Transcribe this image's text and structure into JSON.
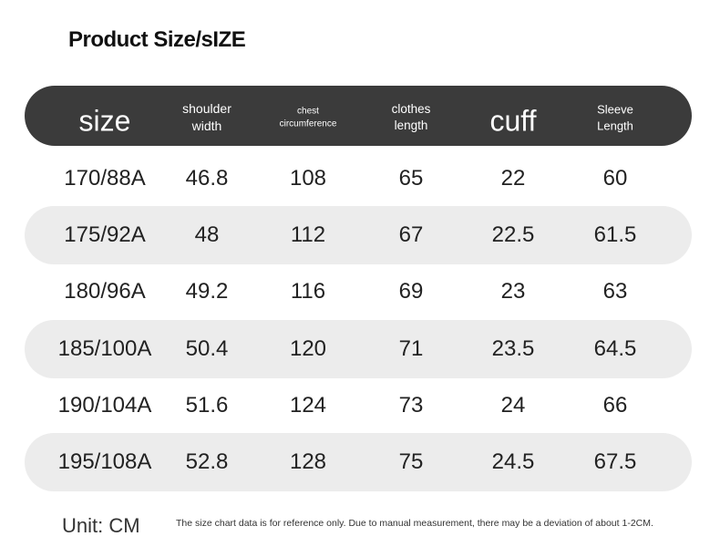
{
  "title": "Product Size/sIZE",
  "table": {
    "header": [
      "size",
      "shoulder width",
      "chest circumference",
      "clothes length",
      "cuff",
      "Sleeve Length"
    ],
    "rows": [
      [
        "170/88A",
        "46.8",
        "108",
        "65",
        "22",
        "60"
      ],
      [
        "175/92A",
        "48",
        "112",
        "67",
        "22.5",
        "61.5"
      ],
      [
        "180/96A",
        "49.2",
        "116",
        "69",
        "23",
        "63"
      ],
      [
        "185/100A",
        "50.4",
        "120",
        "71",
        "23.5",
        "64.5"
      ],
      [
        "190/104A",
        "51.6",
        "124",
        "73",
        "24",
        "66"
      ],
      [
        "195/108A",
        "52.8",
        "128",
        "75",
        "24.5",
        "67.5"
      ]
    ]
  },
  "footer": {
    "unit": "Unit: CM",
    "note": "The size chart data is for reference only. Due to manual measurement, there may be a deviation of about 1-2CM."
  }
}
